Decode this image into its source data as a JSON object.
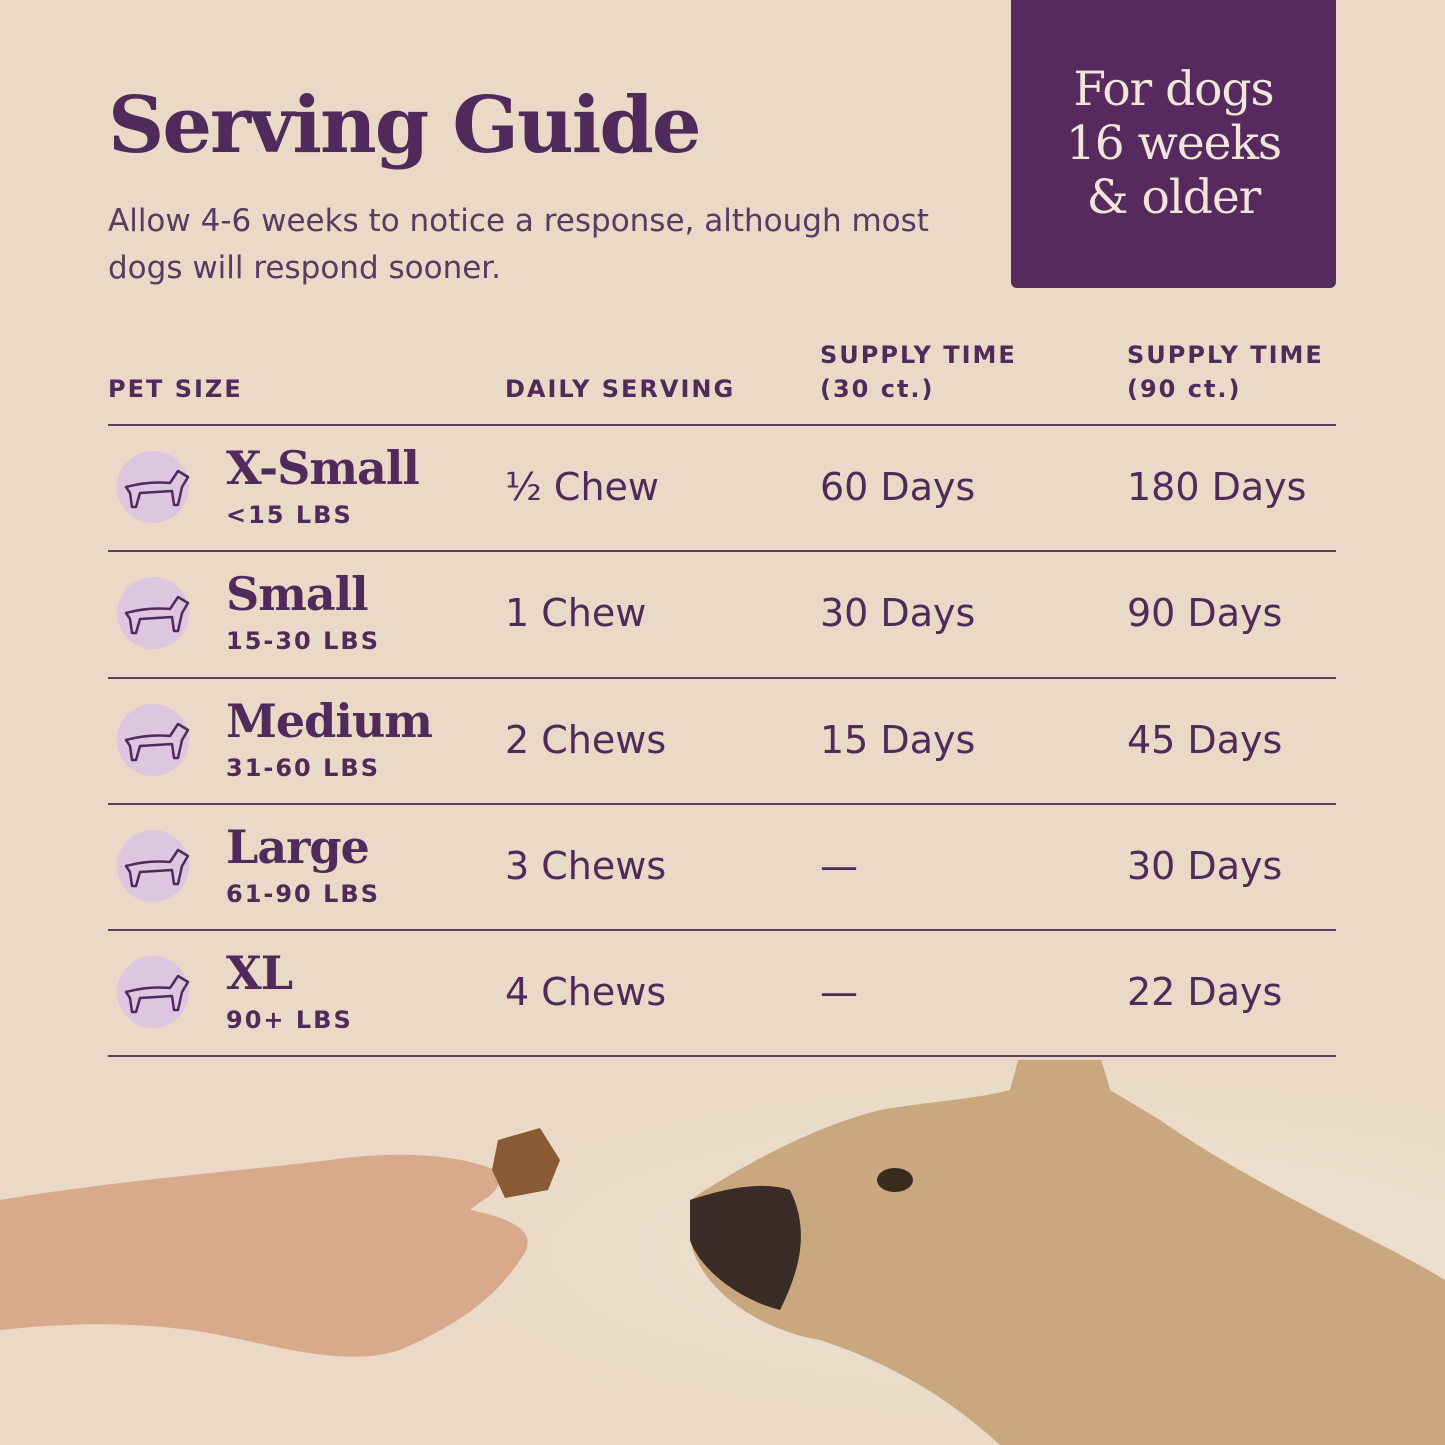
{
  "header": {
    "title": "Serving Guide",
    "subtitle": "Allow 4-6 weeks to notice a response, although most dogs will respond sooner."
  },
  "badge": {
    "lines": [
      "For dogs",
      "16 weeks",
      "& older"
    ]
  },
  "table": {
    "columns": [
      "PET SIZE",
      "DAILY SERVING",
      "SUPPLY TIME (30 ct.)",
      "SUPPLY TIME (90 ct.)"
    ],
    "column_lines": [
      [
        "PET SIZE"
      ],
      [
        "DAILY SERVING"
      ],
      [
        "SUPPLY TIME",
        "(30 ct.)"
      ],
      [
        "SUPPLY TIME",
        "(90 ct.)"
      ]
    ],
    "rows": [
      {
        "icon": "chihuahua-icon",
        "size": "X-Small",
        "weight": "<15 LBS",
        "serving": "½ Chew",
        "supply_30": "60 Days",
        "supply_90": "180 Days"
      },
      {
        "icon": "dachshund-icon",
        "size": "Small",
        "weight": "15-30 LBS",
        "serving": "1 Chew",
        "supply_30": "30 Days",
        "supply_90": "90 Days"
      },
      {
        "icon": "bulldog-icon",
        "size": "Medium",
        "weight": "31-60 LBS",
        "serving": "2 Chews",
        "supply_30": "15 Days",
        "supply_90": "45 Days"
      },
      {
        "icon": "retriever-icon",
        "size": "Large",
        "weight": "61-90 LBS",
        "serving": "3 Chews",
        "supply_30": "—",
        "supply_90": "30 Days"
      },
      {
        "icon": "doberman-icon",
        "size": "XL",
        "weight": "90+ LBS",
        "serving": "4 Chews",
        "supply_30": "—",
        "supply_90": "22 Days"
      }
    ]
  },
  "colors": {
    "background": "#e9d9c6",
    "text": "#4f2a5a",
    "badge": "#562a5e",
    "icon_circle": "#dcc6e0"
  }
}
